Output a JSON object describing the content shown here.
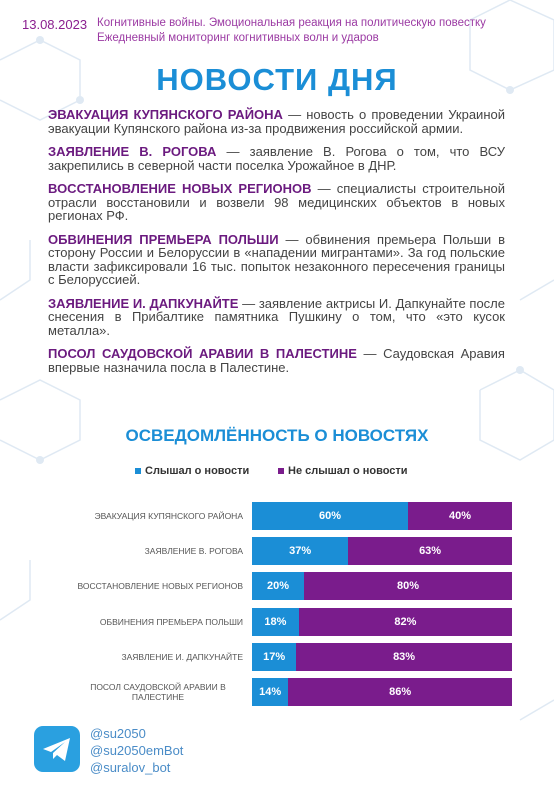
{
  "header": {
    "date": "13.08.2023",
    "lines": [
      "Когнитивные войны. Эмоциональная реакция на политическую повестку",
      "Ежедневный мониторинг когнитивных волн и ударов"
    ]
  },
  "title": "НОВОСТИ ДНЯ",
  "news": [
    {
      "heading": "ЭВАКУАЦИЯ КУПЯНСКОГО РАЙОНА",
      "text": "— новость о проведении Украиной эвакуации Купянского района из-за продвижения российской армии."
    },
    {
      "heading": "ЗАЯВЛЕНИЕ В. РОГОВА",
      "text": "— заявление В. Рогова о том, что ВСУ закрепились в северной части поселка Урожайное в ДНР."
    },
    {
      "heading": "ВОССТАНОВЛЕНИЕ НОВЫХ РЕГИОНОВ",
      "text": "— специалисты строительной отрасли восстановили и возвели 98 медицинских объектов в новых регионах РФ."
    },
    {
      "heading": "ОБВИНЕНИЯ ПРЕМЬЕРА ПОЛЬШИ",
      "text": "— обвинения премьера Польши в сторону России и Белоруссии в «нападении мигрантами». За год польские власти зафиксировали 16 тыс. попыток незаконного пересечения границы с Белоруссией."
    },
    {
      "heading": "ЗАЯВЛЕНИЕ И. ДАПКУНАЙТЕ",
      "text": "— заявление актрисы И. Дапкунайте после снесения в Прибалтике памятника Пушкину о том, что «это кусок металла»."
    },
    {
      "heading": "ПОСОЛ САУДОВСКОЙ АРАВИИ В ПАЛЕСТИНЕ",
      "text": "— Саудовская Аравия впервые назначила посла в Палестине."
    }
  ],
  "chart_data": {
    "type": "stacked-bar",
    "orientation": "horizontal",
    "title": "ОСВЕДОМЛЁННОСТЬ О НОВОСТЯХ",
    "categories": [
      "ЭВАКУАЦИЯ КУПЯНСКОГО РАЙОНА",
      "ЗАЯВЛЕНИЕ В. РОГОВА",
      "ВОССТАНОВЛЕНИЕ НОВЫХ РЕГИОНОВ",
      "ОБВИНЕНИЯ ПРЕМЬЕРА ПОЛЬШИ",
      "ЗАЯВЛЕНИЕ И. ДАПКУНАЙТЕ",
      "ПОСОЛ САУДОВСКОЙ АРАВИИ В ПАЛЕСТИНЕ"
    ],
    "series": [
      {
        "name": "Слышал о новости",
        "color": "#1b8ed6",
        "values": [
          60,
          37,
          20,
          18,
          17,
          14
        ],
        "value_labels": [
          "60%",
          "37%",
          "20%",
          "18%",
          "17%",
          "14%"
        ]
      },
      {
        "name": "Не слышал о новости",
        "color": "#7a1c8c",
        "values": [
          40,
          63,
          80,
          82,
          83,
          86
        ],
        "value_labels": [
          "40%",
          "63%",
          "80%",
          "82%",
          "83%",
          "86%"
        ]
      }
    ]
  },
  "footer": {
    "handles": [
      "@su2050",
      "@su2050emBot",
      "@suralov_bot"
    ]
  }
}
